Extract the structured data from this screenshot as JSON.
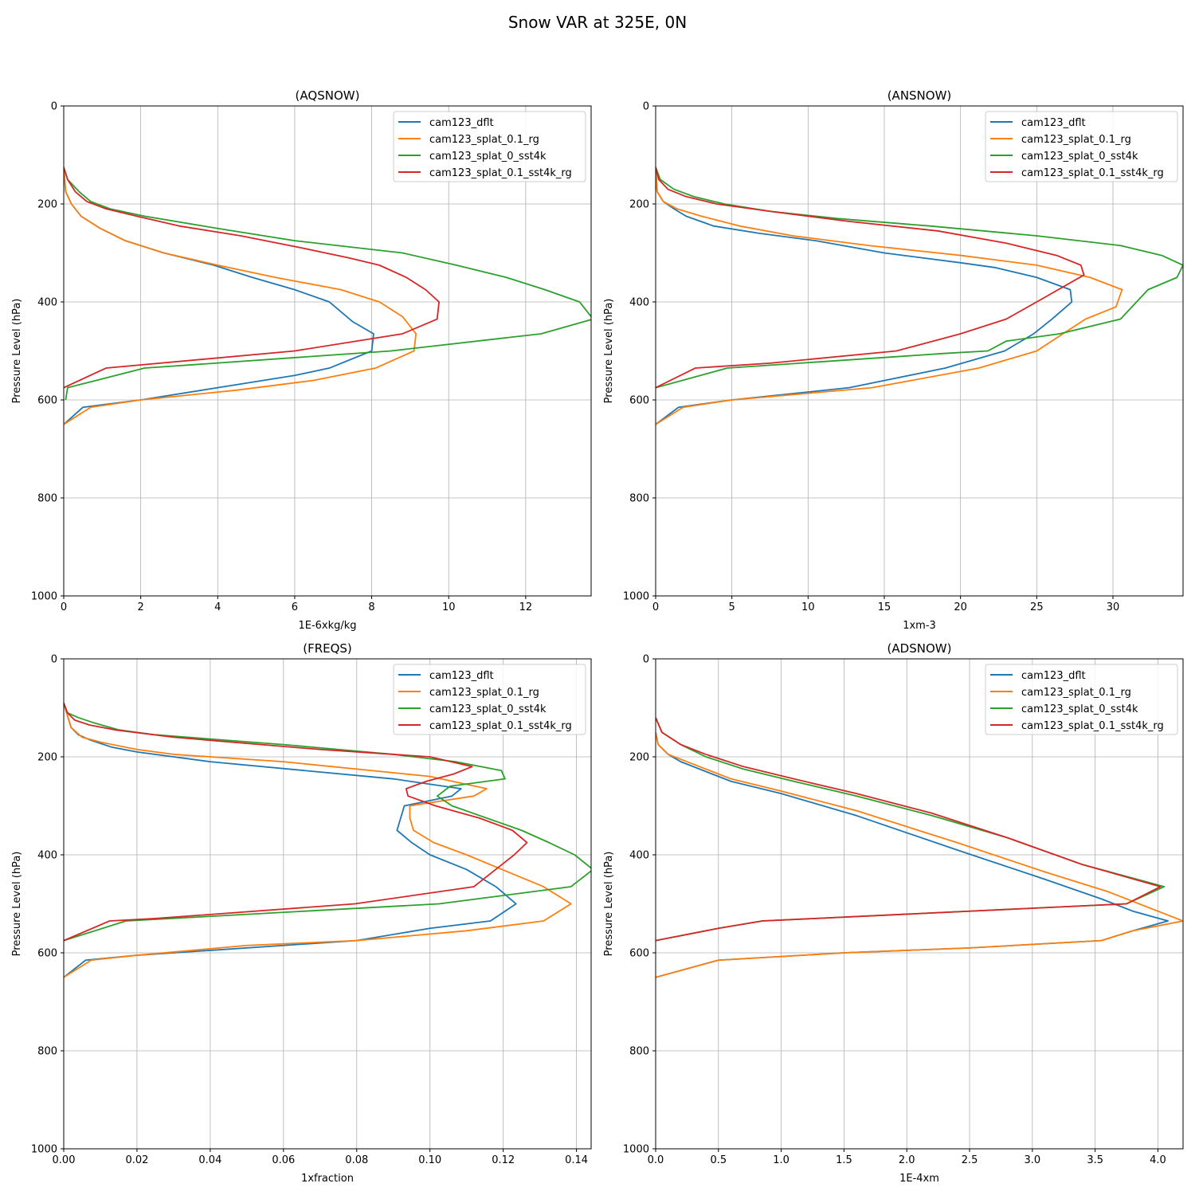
{
  "title": "Snow VAR at 325E, 0N",
  "colors": {
    "cam123_dflt": "#1f77b4",
    "cam123_splat_0.1_rg": "#ff7f0e",
    "cam123_splat_0_sst4k": "#2ca02c",
    "cam123_splat_0.1_sst4k_rg": "#d62728",
    "grid": "#b0b0b0"
  },
  "chart_data": [
    {
      "type": "line",
      "title": "(AQSNOW)",
      "xlabel": "1E-6xkg/kg",
      "ylabel": "Pressure Level (hPa)",
      "xlim": [
        0,
        13.7
      ],
      "ylim": [
        1000,
        0
      ],
      "xticks": [
        0,
        2,
        4,
        6,
        8,
        10,
        12
      ],
      "yticks": [
        0,
        200,
        400,
        600,
        800,
        1000
      ],
      "legend": "top-right",
      "series": [
        {
          "name": "cam123_dflt",
          "x": [
            0,
            0.05,
            0.2,
            0.45,
            0.95,
            1.6,
            2.6,
            3.9,
            4.9,
            6.0,
            6.9,
            7.5,
            8.05,
            8.0,
            6.9,
            6.0,
            4.0,
            2.0,
            0.5,
            0
          ],
          "y": [
            125,
            175,
            200,
            225,
            250,
            275,
            300,
            325,
            350,
            375,
            400,
            440,
            465,
            500,
            535,
            550,
            575,
            600,
            615,
            650
          ]
        },
        {
          "name": "cam123_splat_0.1_rg",
          "x": [
            0,
            0.05,
            0.2,
            0.45,
            0.95,
            1.6,
            2.6,
            4.0,
            5.5,
            7.2,
            8.2,
            8.8,
            9.15,
            9.1,
            8.1,
            6.5,
            4.5,
            2.0,
            0.7,
            0
          ],
          "y": [
            125,
            175,
            200,
            225,
            250,
            275,
            300,
            325,
            350,
            375,
            400,
            430,
            465,
            500,
            535,
            560,
            580,
            600,
            615,
            650
          ]
        },
        {
          "name": "cam123_splat_0_sst4k",
          "x": [
            0,
            0.1,
            0.4,
            0.7,
            1.2,
            2.1,
            4.0,
            6.0,
            8.8,
            10.2,
            11.5,
            12.5,
            13.4,
            13.75,
            12.4,
            8.5,
            2.1,
            0.1,
            0.05
          ],
          "y": [
            125,
            150,
            175,
            195,
            210,
            225,
            250,
            275,
            300,
            325,
            350,
            375,
            400,
            435,
            465,
            500,
            535,
            575,
            600
          ]
        },
        {
          "name": "cam123_splat_0.1_sst4k_rg",
          "x": [
            0,
            0.1,
            0.3,
            0.6,
            1.1,
            1.9,
            3.0,
            4.6,
            6.2,
            7.4,
            8.2,
            8.9,
            9.4,
            9.75,
            9.7,
            8.8,
            6.0,
            1.1,
            0
          ],
          "y": [
            125,
            150,
            175,
            195,
            210,
            225,
            245,
            265,
            290,
            310,
            325,
            350,
            375,
            400,
            435,
            465,
            500,
            535,
            575
          ]
        }
      ]
    },
    {
      "type": "line",
      "title": "(ANSNOW)",
      "xlabel": "1xm-3",
      "ylabel": "Pressure Level (hPa)",
      "xlim": [
        0,
        34.6
      ],
      "ylim": [
        1000,
        0
      ],
      "xticks": [
        0,
        5,
        10,
        15,
        20,
        25,
        30
      ],
      "yticks": [
        0,
        200,
        400,
        600,
        800,
        1000
      ],
      "legend": "top-right",
      "series": [
        {
          "name": "cam123_dflt",
          "x": [
            0,
            0.1,
            0.5,
            1.2,
            2.0,
            3.8,
            6.8,
            10.5,
            15.0,
            20.0,
            22.3,
            25.0,
            27.2,
            27.3,
            26.0,
            24.8,
            22.9,
            19.0,
            12.7,
            5.0,
            1.5,
            0
          ],
          "y": [
            125,
            175,
            195,
            210,
            225,
            245,
            260,
            275,
            300,
            320,
            330,
            350,
            375,
            400,
            435,
            465,
            500,
            535,
            575,
            600,
            615,
            650
          ]
        },
        {
          "name": "cam123_splat_0.1_rg",
          "x": [
            0,
            0.1,
            0.5,
            1.4,
            3.0,
            5.5,
            9.0,
            14.0,
            20.0,
            25.0,
            28.5,
            30.6,
            30.2,
            28.2,
            25.0,
            21.2,
            14.2,
            5.0,
            1.8,
            0
          ],
          "y": [
            125,
            175,
            195,
            210,
            225,
            245,
            265,
            285,
            305,
            325,
            350,
            375,
            410,
            435,
            500,
            535,
            575,
            600,
            615,
            650
          ]
        },
        {
          "name": "cam123_splat_0_sst4k",
          "x": [
            0,
            0.3,
            1.2,
            2.5,
            4.5,
            7.5,
            12.0,
            18.0,
            25.0,
            30.5,
            33.2,
            34.6,
            34.2,
            32.3,
            30.5,
            26.5,
            23.0,
            21.8,
            19.0,
            4.7,
            0
          ],
          "y": [
            125,
            150,
            170,
            185,
            200,
            215,
            230,
            245,
            265,
            285,
            305,
            325,
            350,
            375,
            435,
            465,
            480,
            500,
            505,
            535,
            575
          ]
        },
        {
          "name": "cam123_splat_0.1_sst4k_rg",
          "x": [
            0,
            0.2,
            0.8,
            2.0,
            4.0,
            7.5,
            12.5,
            18.5,
            23.0,
            26.3,
            27.9,
            28.1,
            25.0,
            23.0,
            20.0,
            15.8,
            7.5,
            2.6,
            0
          ],
          "y": [
            125,
            150,
            170,
            185,
            200,
            215,
            235,
            255,
            280,
            305,
            325,
            345,
            400,
            435,
            465,
            500,
            525,
            535,
            575
          ]
        }
      ]
    },
    {
      "type": "line",
      "title": "(FREQS)",
      "xlabel": "1xfraction",
      "ylabel": "Pressure Level (hPa)",
      "xlim": [
        0,
        0.144
      ],
      "ylim": [
        1000,
        0
      ],
      "xticks": [
        0,
        0.02,
        0.04,
        0.06,
        0.08,
        0.1,
        0.12,
        0.14
      ],
      "yticks": [
        0,
        200,
        400,
        600,
        800,
        1000
      ],
      "legend": "top-right",
      "series": [
        {
          "name": "cam123_dflt",
          "x": [
            0,
            0.002,
            0.004,
            0.007,
            0.013,
            0.02,
            0.04,
            0.09,
            0.1085,
            0.106,
            0.093,
            0.092,
            0.091,
            0.095,
            0.1,
            0.11,
            0.118,
            0.1235,
            0.1165,
            0.1,
            0.08,
            0.06,
            0.04,
            0.02,
            0.006,
            0
          ],
          "y": [
            90,
            140,
            155,
            165,
            180,
            190,
            210,
            245,
            265,
            280,
            300,
            325,
            350,
            375,
            400,
            430,
            465,
            500,
            535,
            550,
            575,
            585,
            595,
            605,
            615,
            650
          ]
        },
        {
          "name": "cam123_splat_0.1_rg",
          "x": [
            0,
            0.002,
            0.005,
            0.01,
            0.02,
            0.03,
            0.06,
            0.1,
            0.1155,
            0.112,
            0.0945,
            0.0945,
            0.0955,
            0.101,
            0.11,
            0.131,
            0.1385,
            0.131,
            0.11,
            0.08,
            0.05,
            0.02,
            0.0075,
            0
          ],
          "y": [
            90,
            140,
            160,
            170,
            185,
            195,
            210,
            240,
            265,
            280,
            300,
            325,
            350,
            375,
            400,
            465,
            500,
            535,
            555,
            575,
            585,
            605,
            615,
            650
          ]
        },
        {
          "name": "cam123_splat_0_sst4k",
          "x": [
            0,
            0.001,
            0.004,
            0.008,
            0.015,
            0.025,
            0.06,
            0.09,
            0.107,
            0.1195,
            0.1205,
            0.1055,
            0.102,
            0.106,
            0.125,
            0.1325,
            0.1395,
            0.1445,
            0.1385,
            0.1025,
            0.017,
            0
          ],
          "y": [
            90,
            110,
            120,
            130,
            145,
            155,
            175,
            195,
            210,
            228,
            245,
            260,
            280,
            300,
            350,
            375,
            400,
            430,
            465,
            500,
            535,
            575
          ]
        },
        {
          "name": "cam123_splat_0.1_sst4k_rg",
          "x": [
            0,
            0.001,
            0.003,
            0.007,
            0.014,
            0.03,
            0.07,
            0.1,
            0.1115,
            0.1065,
            0.099,
            0.0935,
            0.094,
            0.1015,
            0.1135,
            0.1225,
            0.1265,
            0.123,
            0.112,
            0.0795,
            0.025,
            0.0125,
            0
          ],
          "y": [
            90,
            110,
            125,
            135,
            145,
            160,
            185,
            200,
            220,
            235,
            250,
            265,
            280,
            300,
            325,
            350,
            375,
            400,
            465,
            500,
            530,
            535,
            575
          ]
        }
      ]
    },
    {
      "type": "line",
      "title": "(ADSNOW)",
      "xlabel": "1E-4xm",
      "ylabel": "Pressure Level (hPa)",
      "xlim": [
        0,
        4.2
      ],
      "ylim": [
        1000,
        0
      ],
      "xticks": [
        0,
        0.5,
        1.0,
        1.5,
        2.0,
        2.5,
        3.0,
        3.5,
        4.0
      ],
      "yticks": [
        0,
        200,
        400,
        600,
        800,
        1000
      ],
      "legend": "top-right",
      "series": [
        {
          "name": "cam123_dflt",
          "x": [
            0,
            0.02,
            0.1,
            0.2,
            0.35,
            0.6,
            1.0,
            1.6,
            2.4,
            3.1,
            3.55,
            3.8,
            4.08,
            3.8,
            3.55,
            2.5,
            1.5,
            0.5,
            0
          ],
          "y": [
            150,
            175,
            195,
            210,
            225,
            250,
            275,
            320,
            390,
            450,
            490,
            515,
            535,
            555,
            575,
            590,
            600,
            615,
            650
          ]
        },
        {
          "name": "cam123_splat_0.1_rg",
          "x": [
            0,
            0.02,
            0.1,
            0.2,
            0.35,
            0.6,
            1.0,
            1.6,
            2.4,
            3.1,
            3.6,
            4.2,
            3.8,
            3.55,
            2.5,
            1.5,
            0.5,
            0
          ],
          "y": [
            150,
            175,
            195,
            205,
            220,
            245,
            270,
            310,
            375,
            435,
            475,
            535,
            555,
            575,
            590,
            600,
            615,
            650
          ]
        },
        {
          "name": "cam123_splat_0_sst4k",
          "x": [
            0,
            0.05,
            0.2,
            0.4,
            0.7,
            1.1,
            1.6,
            2.2,
            2.8,
            3.4,
            4.05,
            3.75,
            2.5,
            0.85,
            0.5,
            0
          ],
          "y": [
            120,
            150,
            175,
            200,
            225,
            250,
            280,
            320,
            365,
            420,
            465,
            500,
            515,
            535,
            550,
            575
          ]
        },
        {
          "name": "cam123_splat_0.1_sst4k_rg",
          "x": [
            0,
            0.05,
            0.2,
            0.4,
            0.7,
            1.1,
            1.6,
            2.2,
            2.8,
            3.4,
            4.02,
            3.75,
            2.5,
            0.85,
            0.5,
            0
          ],
          "y": [
            120,
            150,
            175,
            195,
            220,
            245,
            275,
            315,
            365,
            420,
            465,
            500,
            515,
            535,
            550,
            575
          ]
        }
      ]
    }
  ]
}
